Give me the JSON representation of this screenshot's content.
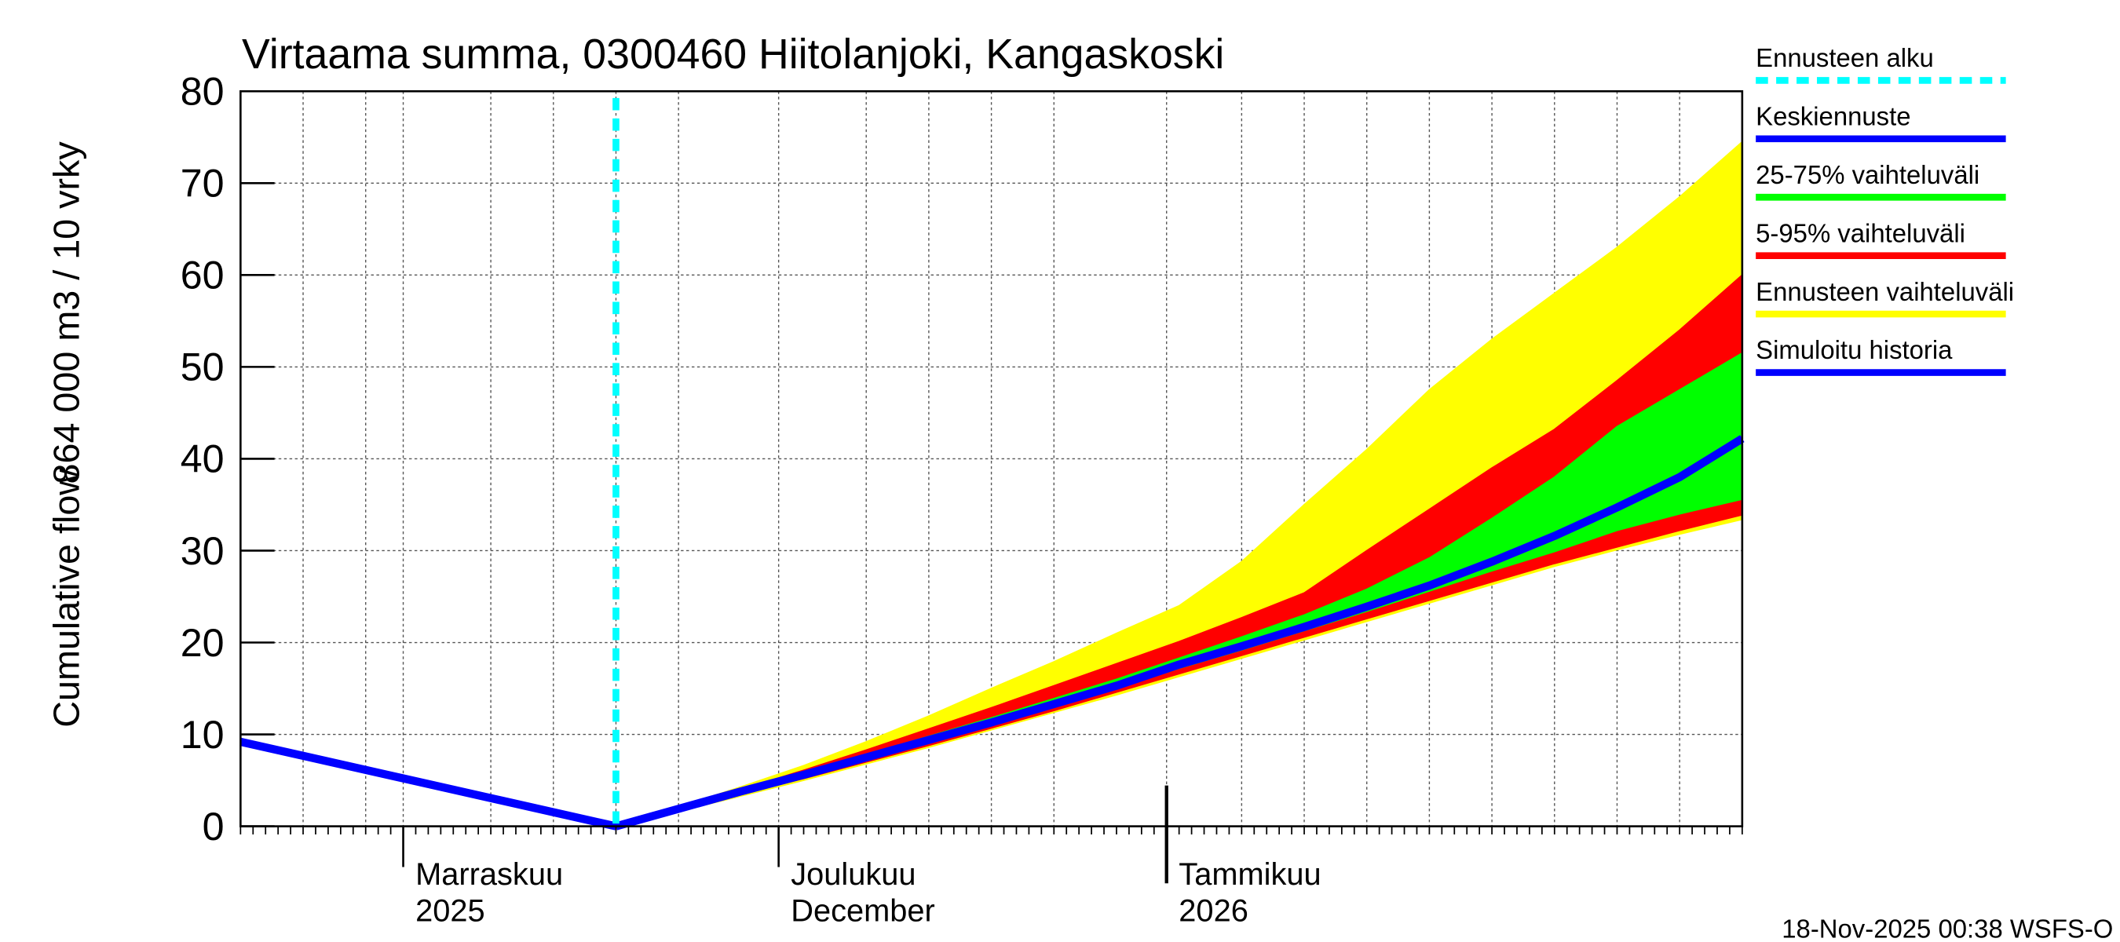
{
  "chart_data": {
    "type": "line",
    "title": "Virtaama summa, 0300460 Hiitolanjoki, Kangaskoski",
    "y_label": [
      "Cumulative flow",
      "864 000 m3 / 10 vrky"
    ],
    "footer": "18-Nov-2025 00:38 WSFS-O",
    "xlim": [
      0,
      120
    ],
    "xticks": [
      {
        "value": 13,
        "label": [
          "Marraskuu",
          "2025"
        ]
      },
      {
        "value": 43,
        "label": [
          "Joulukuu",
          "December"
        ]
      },
      {
        "value": 74,
        "label": [
          "Tammikuu",
          "2026"
        ]
      }
    ],
    "xgrid": [
      5,
      10,
      13,
      20,
      25,
      30,
      35,
      43,
      50,
      55,
      60,
      65,
      74,
      80,
      85,
      90,
      95,
      100,
      105,
      110,
      115
    ],
    "ylim": [
      0,
      80
    ],
    "yticks": [
      0,
      10,
      20,
      30,
      40,
      50,
      60,
      70,
      80
    ],
    "grid": true,
    "forecast_start": {
      "name": "Ennusteen alku",
      "x": 30,
      "color": "#00ffff"
    },
    "series": [
      {
        "name": "Keskiennuste",
        "color": "#0000ff",
        "x": [
          30,
          35,
          40,
          45,
          50,
          55,
          60,
          65,
          70,
          75,
          80,
          85,
          90,
          95,
          100,
          105,
          110,
          115,
          120
        ],
        "values": [
          0,
          1.9,
          3.8,
          5.6,
          7.5,
          9.4,
          11.3,
          13.3,
          15.3,
          17.6,
          19.6,
          21.7,
          23.9,
          26.2,
          28.8,
          31.6,
          34.7,
          38,
          42.2
        ]
      },
      {
        "name": "25-75% vaihteluväli",
        "color": "#00ff00",
        "x": [
          30,
          35,
          40,
          45,
          50,
          55,
          60,
          65,
          70,
          75,
          80,
          85,
          90,
          95,
          100,
          105,
          110,
          115,
          120
        ],
        "low": [
          0,
          1.8,
          3.7,
          5.4,
          7.3,
          9.2,
          11.1,
          13.0,
          15.0,
          17.2,
          19.2,
          21.3,
          23.4,
          25.6,
          27.8,
          29.9,
          32.2,
          34.0,
          35.6
        ],
        "high": [
          0,
          1.9,
          3.9,
          5.8,
          7.8,
          9.8,
          11.8,
          13.9,
          16.0,
          18.3,
          20.6,
          23.0,
          25.8,
          29.2,
          33.5,
          38.0,
          43.5,
          47.5,
          51.5
        ]
      },
      {
        "name": "5-95% vaihteluväli",
        "color": "#ff0000",
        "x": [
          30,
          35,
          40,
          45,
          50,
          55,
          60,
          65,
          70,
          75,
          80,
          85,
          90,
          95,
          100,
          105,
          110,
          115,
          120
        ],
        "low": [
          0,
          1.7,
          3.5,
          5.2,
          7.0,
          8.8,
          10.7,
          12.6,
          14.6,
          16.6,
          18.6,
          20.6,
          22.6,
          24.6,
          26.6,
          28.6,
          30.4,
          32.2,
          33.9
        ],
        "high": [
          0,
          2.0,
          4.0,
          6.1,
          8.3,
          10.6,
          12.9,
          15.3,
          17.7,
          20.1,
          22.7,
          25.4,
          30.0,
          34.5,
          39.0,
          43.2,
          48.5,
          54.0,
          60.0
        ]
      },
      {
        "name": "Ennusteen vaihteluväli",
        "color": "#ffff00",
        "x": [
          30,
          35,
          40,
          45,
          50,
          55,
          60,
          65,
          70,
          75,
          80,
          85,
          90,
          95,
          100,
          105,
          110,
          115,
          120
        ],
        "low": [
          0,
          1.6,
          3.3,
          5.0,
          6.8,
          8.6,
          10.5,
          12.4,
          14.3,
          16.3,
          18.3,
          20.3,
          22.3,
          24.3,
          26.3,
          28.3,
          30.1,
          31.8,
          33.4
        ],
        "high": [
          0,
          2.1,
          4.3,
          6.6,
          9.2,
          12.0,
          15.0,
          17.9,
          21.0,
          24.0,
          28.8,
          35.0,
          41.0,
          47.5,
          53.0,
          58.0,
          63.0,
          68.5,
          74.5
        ]
      },
      {
        "name": "Simuloitu historia",
        "color": "#0000ff",
        "x": [
          0,
          30
        ],
        "values": [
          9.2,
          0
        ]
      }
    ]
  }
}
